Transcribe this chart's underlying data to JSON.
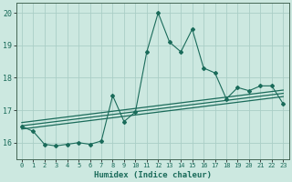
{
  "xlabel": "Humidex (Indice chaleur)",
  "bg_color": "#cce8e0",
  "grid_color": "#aacec6",
  "line_color": "#1a6b5a",
  "xlim": [
    -0.5,
    23.5
  ],
  "ylim": [
    15.5,
    20.3
  ],
  "yticks": [
    16,
    17,
    18,
    19,
    20
  ],
  "xticks": [
    0,
    1,
    2,
    3,
    4,
    5,
    6,
    7,
    8,
    9,
    10,
    11,
    12,
    13,
    14,
    15,
    16,
    17,
    18,
    19,
    20,
    21,
    22,
    23
  ],
  "main_y": [
    16.5,
    16.35,
    15.95,
    15.9,
    15.95,
    16.0,
    15.95,
    16.05,
    17.45,
    16.65,
    16.95,
    18.8,
    20.0,
    19.1,
    18.8,
    19.5,
    18.3,
    18.15,
    17.35,
    17.7,
    17.6,
    17.75,
    17.75,
    17.2
  ],
  "line1_start": 16.62,
  "line1_end": 17.62,
  "line2_start": 16.52,
  "line2_end": 17.52,
  "line3_start": 16.42,
  "line3_end": 17.42
}
